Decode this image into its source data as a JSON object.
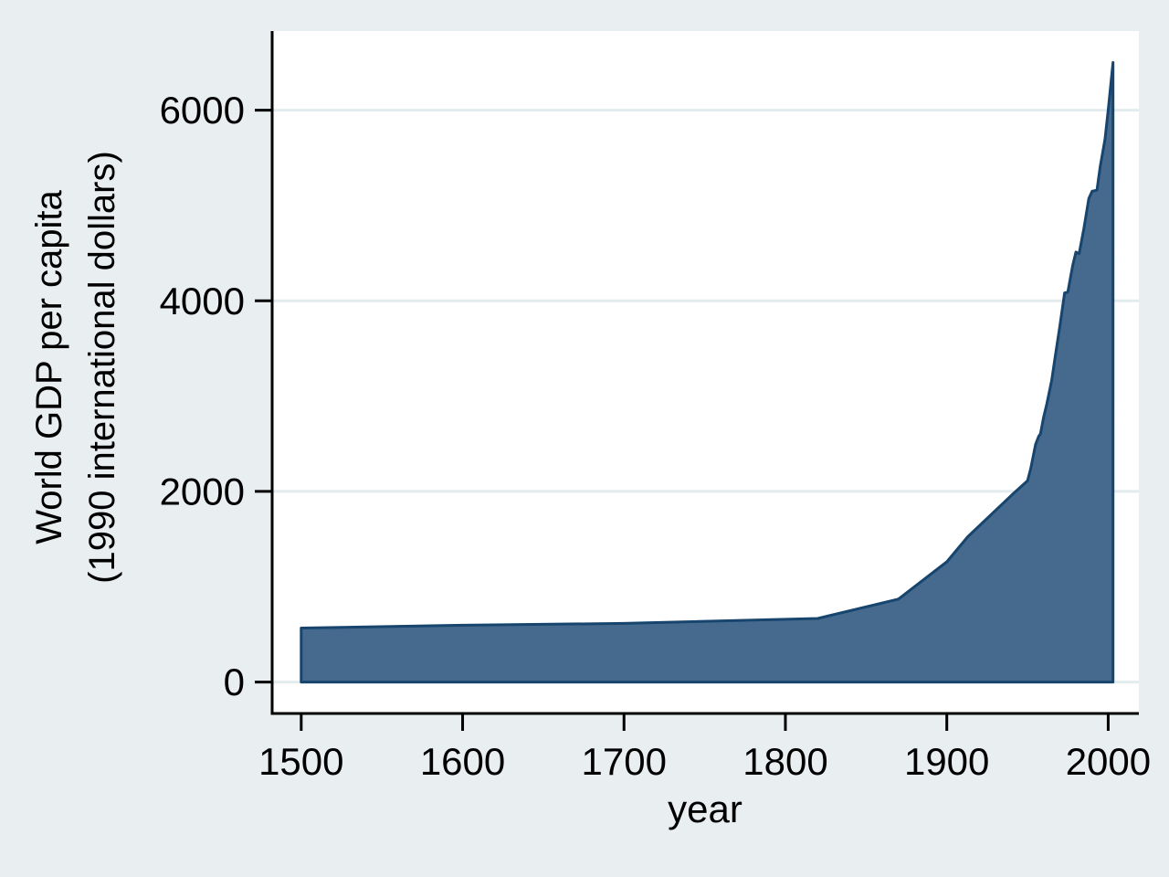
{
  "chart_data": {
    "type": "area",
    "title": "",
    "xlabel": "year",
    "ylabel_lines": [
      "World GDP per capita",
      "(1990 international dollars)"
    ],
    "x": [
      1500,
      1600,
      1700,
      1820,
      1870,
      1900,
      1913,
      1940,
      1950,
      1952,
      1955,
      1957,
      1958,
      1960,
      1962,
      1965,
      1967,
      1970,
      1973,
      1975,
      1978,
      1980,
      1982,
      1985,
      1988,
      1990,
      1993,
      1995,
      1998,
      2000,
      2003
    ],
    "values": [
      566,
      596,
      615,
      667,
      870,
      1261,
      1525,
      1958,
      2111,
      2240,
      2493,
      2580,
      2602,
      2777,
      2921,
      3168,
      3396,
      3729,
      4083,
      4091,
      4368,
      4511,
      4494,
      4764,
      5072,
      5149,
      5160,
      5404,
      5694,
      5998,
      6500
    ],
    "baseline": 0,
    "x_ticks": [
      1500,
      1600,
      1700,
      1800,
      1900,
      2000
    ],
    "x_tick_labels": [
      "1500",
      "1600",
      "1700",
      "1800",
      "1900",
      "2000"
    ],
    "y_ticks": [
      0,
      2000,
      4000,
      6000
    ],
    "y_tick_labels": [
      "0",
      "2000",
      "4000",
      "6000"
    ],
    "xlim": [
      1482,
      2019
    ],
    "ylim": [
      -330,
      6830
    ],
    "grid": "horizontal",
    "legend": "none",
    "colors": {
      "background": "#e9eef1",
      "plot_background": "#ffffff",
      "area_fill": "#466a8e",
      "area_stroke": "#17456d",
      "gridline": "#e2ebee",
      "axis": "#000000",
      "text": "#000000"
    }
  }
}
